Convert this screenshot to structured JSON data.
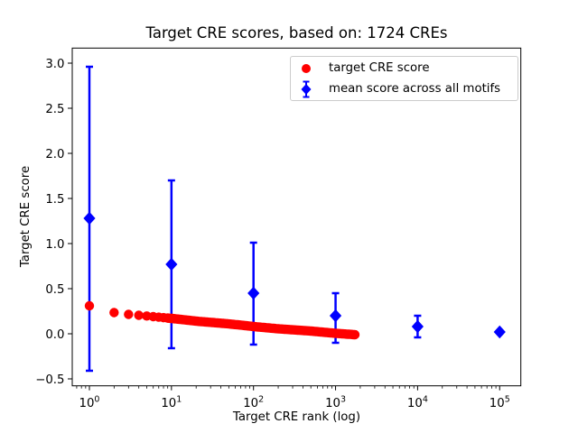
{
  "chart_data": {
    "type": "scatter",
    "title": "Target CRE scores, based on: 1724 CREs",
    "xlabel": "Target CRE rank (log)",
    "ylabel": "Target CRE score",
    "x_scale": "log",
    "grid": false,
    "legend_position": "upper right",
    "xlim_log10": [
      -0.209,
      5.258
    ],
    "ylim": [
      -0.577,
      3.167
    ],
    "x_tick_base": "10",
    "x_tick_exponents": [
      0,
      1,
      2,
      3,
      4,
      5
    ],
    "y_ticks": [
      -0.5,
      0.0,
      0.5,
      1.0,
      1.5,
      2.0,
      2.5,
      3.0
    ],
    "axis_color": "#000000",
    "series": [
      {
        "name": "target CRE score",
        "type": "scatter-curve",
        "marker": "circle",
        "color": "#ff0000",
        "n_points": 1724,
        "anchors_rank_score": [
          [
            1,
            0.31
          ],
          [
            2,
            0.235
          ],
          [
            3,
            0.215
          ],
          [
            4,
            0.205
          ],
          [
            6,
            0.19
          ],
          [
            10,
            0.17
          ],
          [
            20,
            0.14
          ],
          [
            50,
            0.11
          ],
          [
            100,
            0.08
          ],
          [
            200,
            0.055
          ],
          [
            500,
            0.03
          ],
          [
            1000,
            0.005
          ],
          [
            1724,
            -0.01
          ]
        ]
      },
      {
        "name": "mean score across all motifs",
        "type": "errorbar",
        "marker": "diamond",
        "color": "#0000ff",
        "points": [
          {
            "x": 1,
            "y": 1.28,
            "ylo": -0.41,
            "yhi": 2.96
          },
          {
            "x": 10,
            "y": 0.77,
            "ylo": -0.16,
            "yhi": 1.7
          },
          {
            "x": 100,
            "y": 0.45,
            "ylo": -0.12,
            "yhi": 1.01
          },
          {
            "x": 1000,
            "y": 0.2,
            "ylo": -0.1,
            "yhi": 0.45
          },
          {
            "x": 10000,
            "y": 0.08,
            "ylo": -0.04,
            "yhi": 0.2
          },
          {
            "x": 100000,
            "y": 0.02,
            "ylo": 0.02,
            "yhi": 0.02
          }
        ]
      }
    ]
  }
}
